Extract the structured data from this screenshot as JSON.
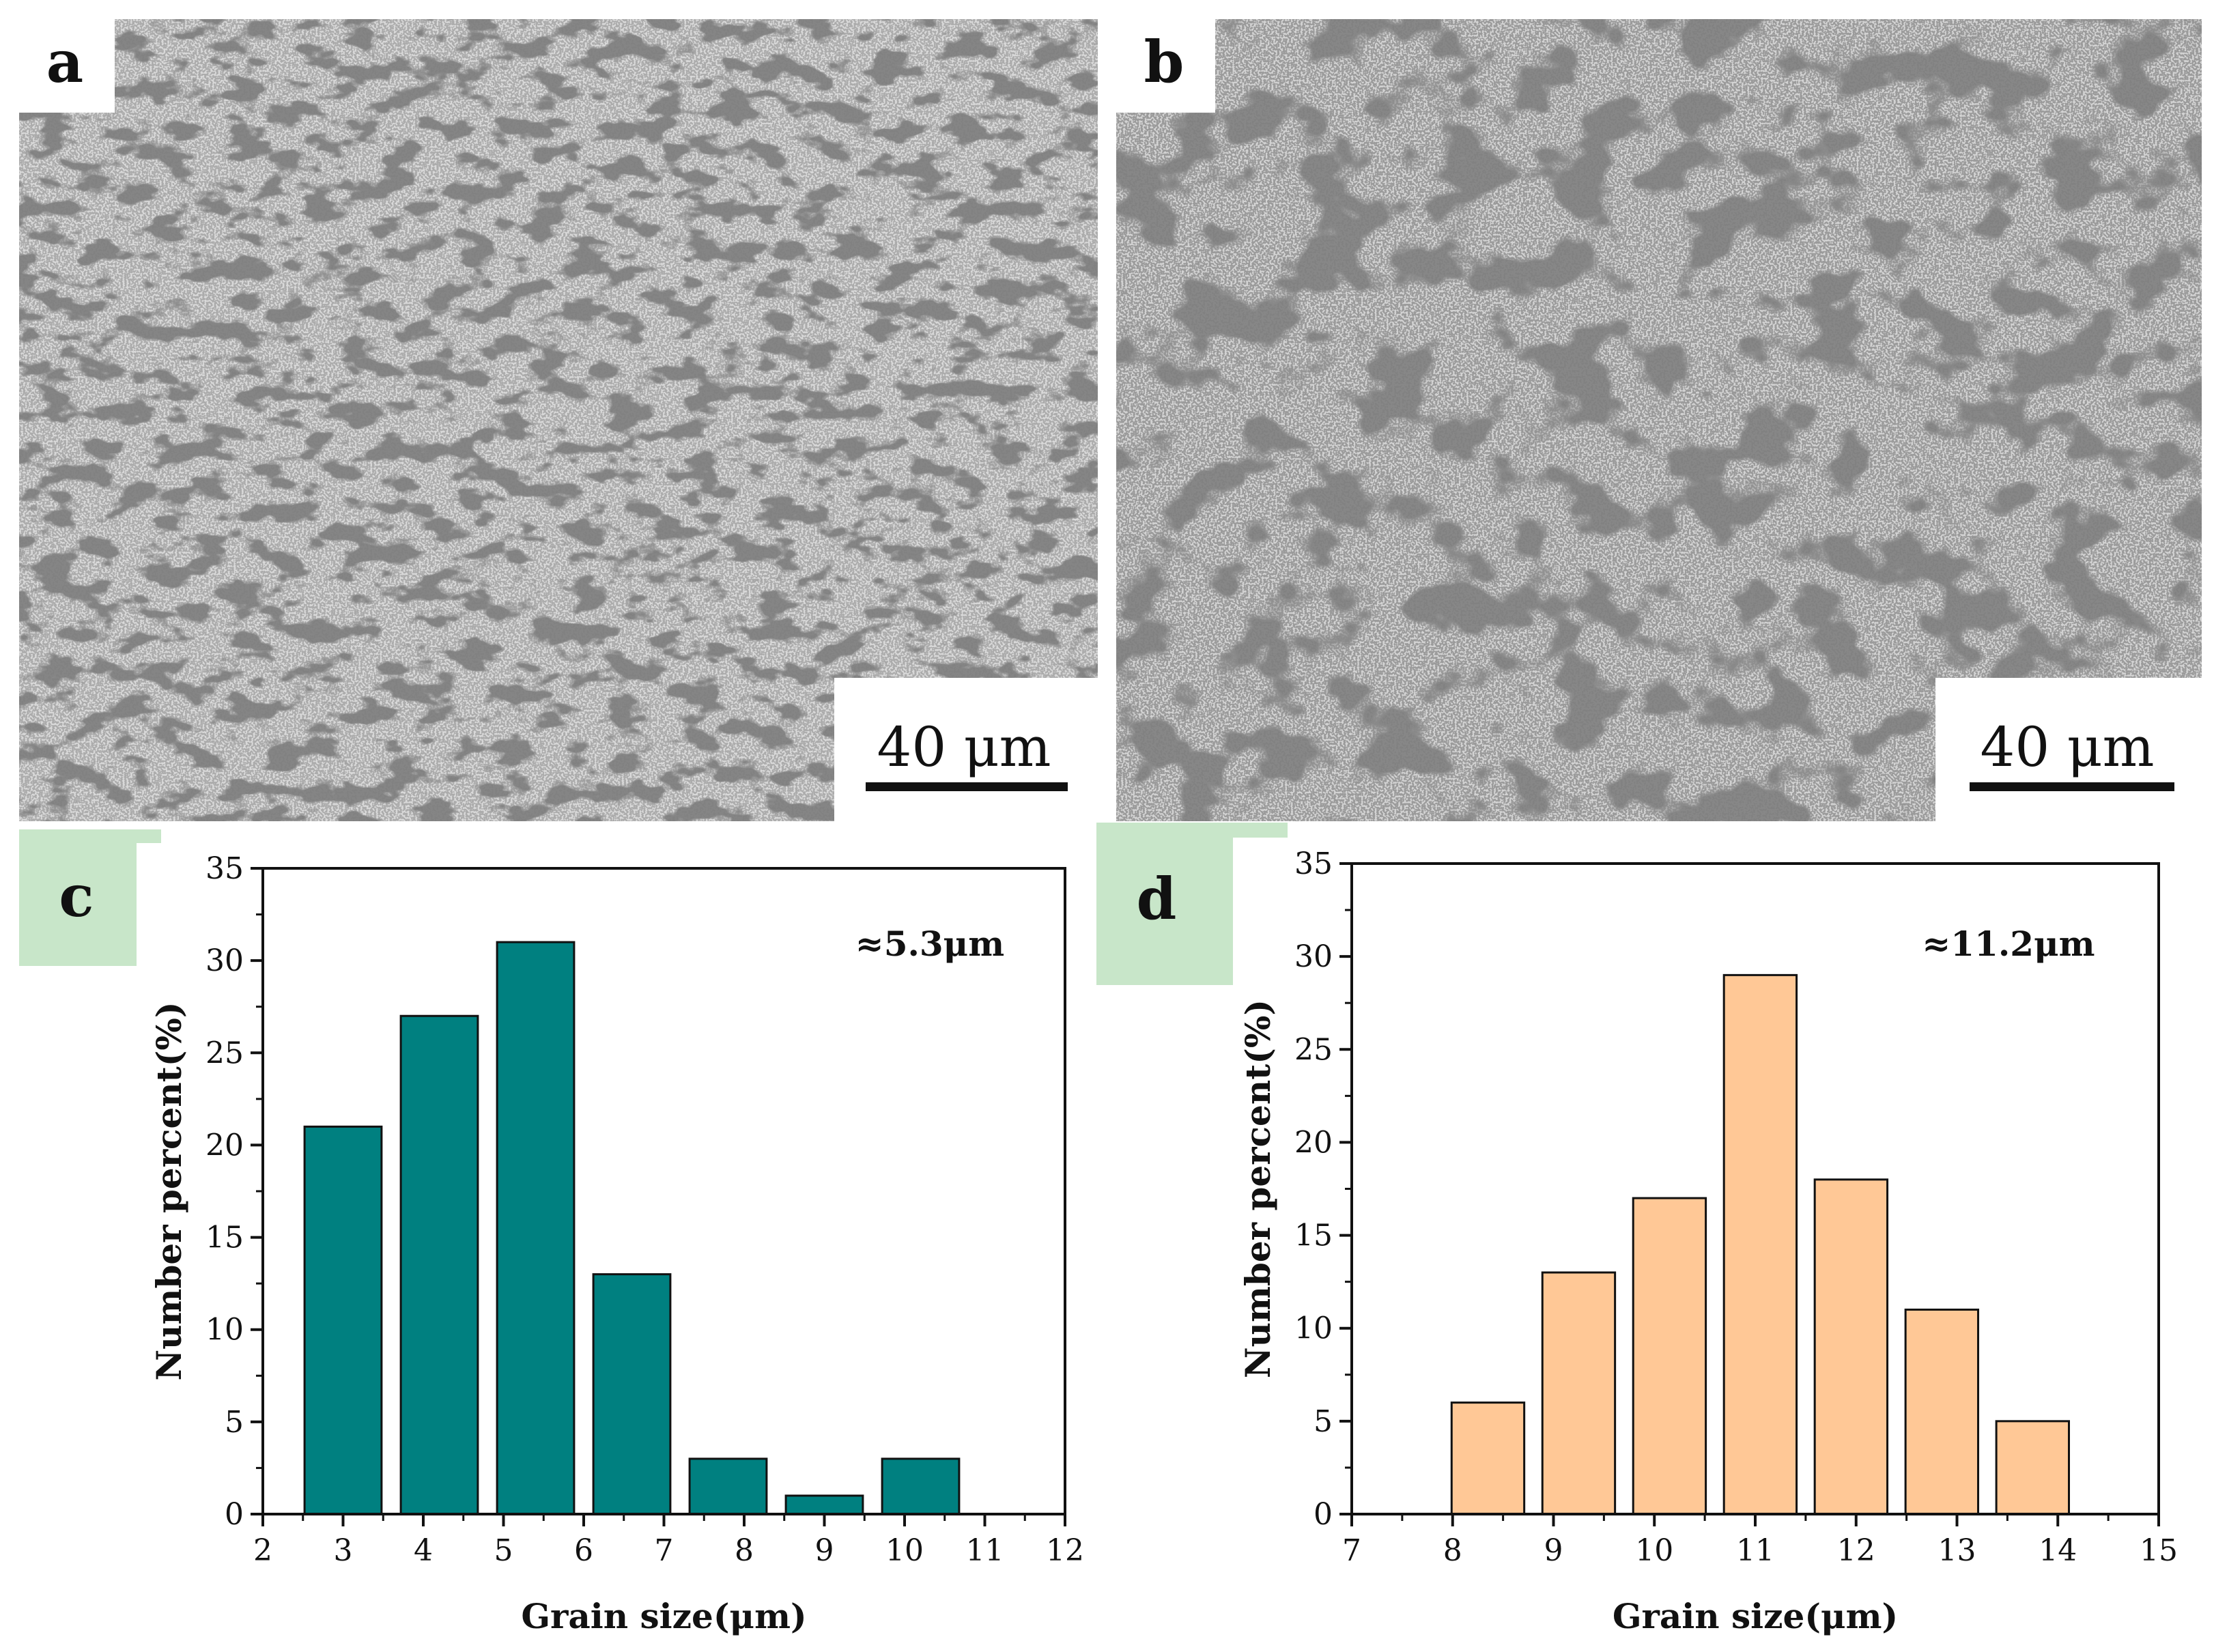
{
  "panels": {
    "a": {
      "label": "a",
      "scale_bar": "40 μm"
    },
    "b": {
      "label": "b",
      "scale_bar": "40 μm"
    },
    "c": {
      "label": "c",
      "annotation": "≈5.3μm"
    },
    "d": {
      "label": "d",
      "annotation": "≈11.2μm"
    }
  },
  "colors": {
    "teal_bar": "#008080",
    "peach_bar": "#FFC896",
    "label_bg_micro": "#ffffff",
    "label_bg_chart": "#C8E6C9",
    "micro_base": "#d6d6d6",
    "micro_boundary": "#3a3a3a"
  },
  "chart_data": [
    {
      "type": "bar",
      "panel": "c",
      "title": "",
      "xlabel": "Grain size(μm)",
      "ylabel": "Number percent(%)",
      "xlim": [
        2,
        12
      ],
      "ylim": [
        0,
        35
      ],
      "xticks": [
        2,
        3,
        4,
        5,
        6,
        7,
        8,
        9,
        10,
        11,
        12
      ],
      "yticks": [
        0,
        5,
        10,
        15,
        20,
        25,
        30,
        35
      ],
      "bar_centers": [
        3,
        4.2,
        5.4,
        6.6,
        7.8,
        9.0,
        10.2
      ],
      "bar_width": 0.96,
      "values": [
        21,
        27,
        31,
        13,
        3,
        1,
        3
      ],
      "annotation": "≈5.3μm"
    },
    {
      "type": "bar",
      "panel": "d",
      "title": "",
      "xlabel": "Grain size(μm)",
      "ylabel": "Number percent(%)",
      "xlim": [
        7,
        15
      ],
      "ylim": [
        0,
        35
      ],
      "xticks": [
        7,
        8,
        9,
        10,
        11,
        12,
        13,
        14,
        15
      ],
      "yticks": [
        0,
        5,
        10,
        15,
        20,
        25,
        30,
        35
      ],
      "bar_centers": [
        8.35,
        9.25,
        10.15,
        11.05,
        11.95,
        12.85,
        13.75
      ],
      "bar_width": 0.72,
      "values": [
        6,
        13,
        17,
        29,
        18,
        11,
        5
      ],
      "annotation": "≈11.2μm"
    }
  ]
}
